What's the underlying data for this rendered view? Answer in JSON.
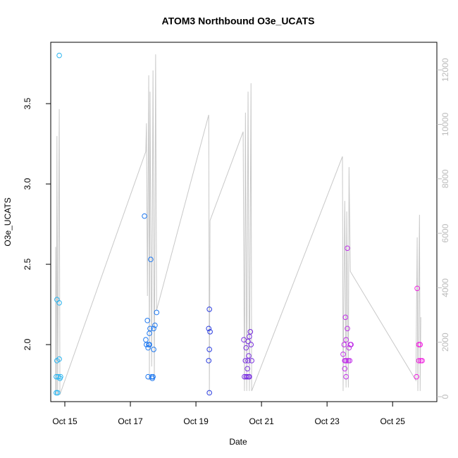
{
  "chart_data": {
    "type": "scatter",
    "title": "ATOM3 Northbound O3e_UCATS",
    "xlabel": "Date",
    "ylabel": "O3e_UCATS",
    "xlim": [
      14.57,
      26.35
    ],
    "ylim": [
      1.645,
      3.882
    ],
    "y2lim": [
      -181,
      13014
    ],
    "xticks": [
      {
        "value": 15,
        "label": "Oct 15"
      },
      {
        "value": 17,
        "label": "Oct 17"
      },
      {
        "value": 19,
        "label": "Oct 19"
      },
      {
        "value": 21,
        "label": "Oct 21"
      },
      {
        "value": 23,
        "label": "Oct 23"
      },
      {
        "value": 25,
        "label": "Oct 25"
      }
    ],
    "yticks": [
      {
        "value": 2,
        "label": "2.0"
      },
      2.5,
      {
        "value": 3,
        "label": "3.0"
      },
      3.5
    ],
    "y2ticks": [
      0,
      2000,
      4000,
      6000,
      8000,
      10000,
      12000
    ],
    "series": [
      {
        "type": "scatter",
        "color": "#28b4f0",
        "x": [
          14.74,
          14.78,
          14.74,
          14.8,
          14.87,
          14.76,
          14.83,
          14.76,
          14.83,
          14.85,
          14.83
        ],
        "values": [
          1.7,
          1.7,
          1.8,
          1.8,
          1.8,
          2.28,
          2.26,
          1.9,
          1.91,
          1.79,
          3.8
        ]
      },
      {
        "type": "scatter",
        "color": "#1e78f0",
        "x": [
          17.43,
          17.47,
          17.49,
          17.52,
          17.54,
          17.56,
          17.58,
          17.6,
          17.62,
          17.65,
          17.67,
          17.69,
          17.71,
          17.71,
          17.75,
          17.8,
          17.54,
          17.58
        ],
        "values": [
          2.8,
          2.03,
          2.0,
          2.15,
          1.98,
          2.0,
          2.07,
          2.1,
          2.53,
          1.8,
          1.79,
          1.8,
          2.1,
          1.97,
          2.12,
          2.2,
          1.8,
          2.0
        ]
      },
      {
        "type": "scatter",
        "color": "#2a3ce0",
        "x": [
          19.41,
          19.39,
          19.43,
          19.41,
          19.39,
          19.41
        ],
        "values": [
          2.22,
          2.1,
          2.08,
          1.97,
          1.9,
          1.7
        ]
      },
      {
        "type": "scatter",
        "color": "#7a30e0",
        "x": [
          20.46,
          20.48,
          20.53,
          20.57,
          20.61,
          20.51,
          20.53,
          20.57,
          20.59,
          20.61,
          20.63,
          20.66,
          20.68,
          20.7,
          20.59,
          20.63
        ],
        "values": [
          2.03,
          1.8,
          1.8,
          1.8,
          1.8,
          1.9,
          1.98,
          1.85,
          2.02,
          1.93,
          2.05,
          2.08,
          2.0,
          1.9,
          1.9,
          1.8
        ]
      },
      {
        "type": "scatter",
        "color": "#c030e8",
        "x": [
          23.49,
          23.52,
          23.54,
          23.56,
          23.58,
          23.54,
          23.58,
          23.6,
          23.62,
          23.62,
          23.65,
          23.67,
          23.69,
          23.71,
          23.73,
          23.56
        ],
        "values": [
          1.94,
          2.0,
          1.9,
          2.17,
          1.8,
          1.85,
          2.03,
          1.9,
          2.1,
          2.6,
          1.9,
          1.98,
          1.9,
          2.0,
          2.0,
          1.9
        ]
      },
      {
        "type": "scatter",
        "color": "#f020e0",
        "x": [
          25.75,
          25.73,
          25.8,
          25.84,
          25.8,
          25.86,
          25.9
        ],
        "values": [
          2.35,
          1.8,
          2.0,
          2.0,
          1.9,
          1.9,
          1.9
        ]
      },
      {
        "type": "line",
        "color": "#c8c8c8",
        "axis": "y2",
        "x": [
          14.72,
          14.72,
          14.74,
          14.76,
          14.78,
          14.83,
          14.85,
          17.47,
          17.49,
          17.52,
          17.56,
          17.58,
          17.6,
          17.65,
          17.69,
          17.73,
          17.77,
          17.8,
          19.39,
          19.41,
          19.43,
          20.44,
          20.48,
          20.51,
          20.55,
          20.59,
          20.63,
          20.68,
          20.7,
          23.47,
          23.49,
          23.54,
          23.58,
          23.6,
          23.65,
          23.67,
          23.71,
          25.71,
          25.75,
          25.77,
          25.82,
          25.84,
          25.86
        ],
        "values": [
          80,
          5500,
          80,
          9570,
          80,
          10560,
          80,
          9000,
          10040,
          3700,
          11800,
          600,
          11200,
          1110,
          11980,
          600,
          12570,
          3180,
          10350,
          80,
          6470,
          9730,
          210,
          10430,
          210,
          11200,
          210,
          11510,
          210,
          8820,
          210,
          7190,
          340,
          6800,
          340,
          8430,
          4600,
          600,
          5850,
          210,
          6680,
          210,
          2920
        ]
      }
    ]
  }
}
